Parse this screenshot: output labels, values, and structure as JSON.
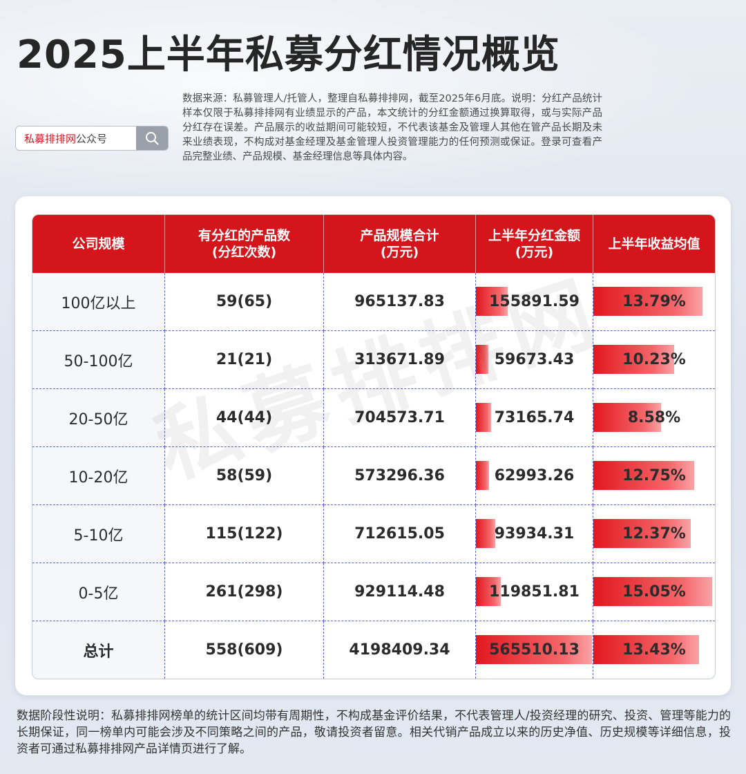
{
  "page": {
    "title": "2025上半年私募分红情况概览",
    "source_note": "数据来源：私募管理人/托管人，整理自私募排排网，截至2025年6月底。说明：分红产品统计样本仅限于私募排排网有业绩显示的产品，本文统计的分红金额通过换算取得，或与实际产品分红存在误差。产品展示的收益期间可能较短，不代表该基金及管理人其他在管产品长期及未来业绩表现，不构成对基金经理及基金管理人投资管理能力的任何预测或保证。登录可查看产品完整业绩、产品规模、基金经理信息等具体内容。",
    "search": {
      "brand": "私募排排网",
      "suffix": "公众号",
      "icon": "search-icon"
    },
    "watermark": "私募排排网",
    "footer_note": "数据阶段性说明：私募排排网榜单的统计区间均带有周期性，不构成基金评价结果，不代表管理人/投资经理的研究、投资、管理等能力的长期保证，同一榜单内可能会涉及不同策略之间的产品，敬请投资者留意。相关代销产品成立以来的历史净值、历史规模等详细信息，投资者可通过私募排排网产品详情页进行了解。"
  },
  "colors": {
    "header_bg": "#d4161c",
    "bar_start": "#e1181f",
    "bar_end": "#f9a3a6",
    "brand_red": "#d4161c"
  },
  "chart_data": {
    "type": "table",
    "columns": [
      "公司规模",
      "有分红的产品数\n(分红次数)",
      "产品规模合计\n(万元)",
      "上半年分红金额\n(万元)",
      "上半年收益均值"
    ],
    "rows": [
      {
        "scale": "100亿以上",
        "count": "59(65)",
        "aum": "965137.83",
        "dividend": "155891.59",
        "ret": "13.79%"
      },
      {
        "scale": "50-100亿",
        "count": "21(21)",
        "aum": "313671.89",
        "dividend": "59673.43",
        "ret": "10.23%"
      },
      {
        "scale": "20-50亿",
        "count": "44(44)",
        "aum": "704573.71",
        "dividend": "73165.74",
        "ret": "8.58%"
      },
      {
        "scale": "10-20亿",
        "count": "58(59)",
        "aum": "573296.36",
        "dividend": "62993.26",
        "ret": "12.75%"
      },
      {
        "scale": "5-10亿",
        "count": "115(122)",
        "aum": "712615.05",
        "dividend": "93934.31",
        "ret": "12.37%"
      },
      {
        "scale": "0-5亿",
        "count": "261(298)",
        "aum": "929114.48",
        "dividend": "119851.81",
        "ret": "15.05%"
      },
      {
        "scale": "总计",
        "count": "558(609)",
        "aum": "4198409.34",
        "dividend": "565510.13",
        "ret": "13.43%"
      }
    ]
  }
}
